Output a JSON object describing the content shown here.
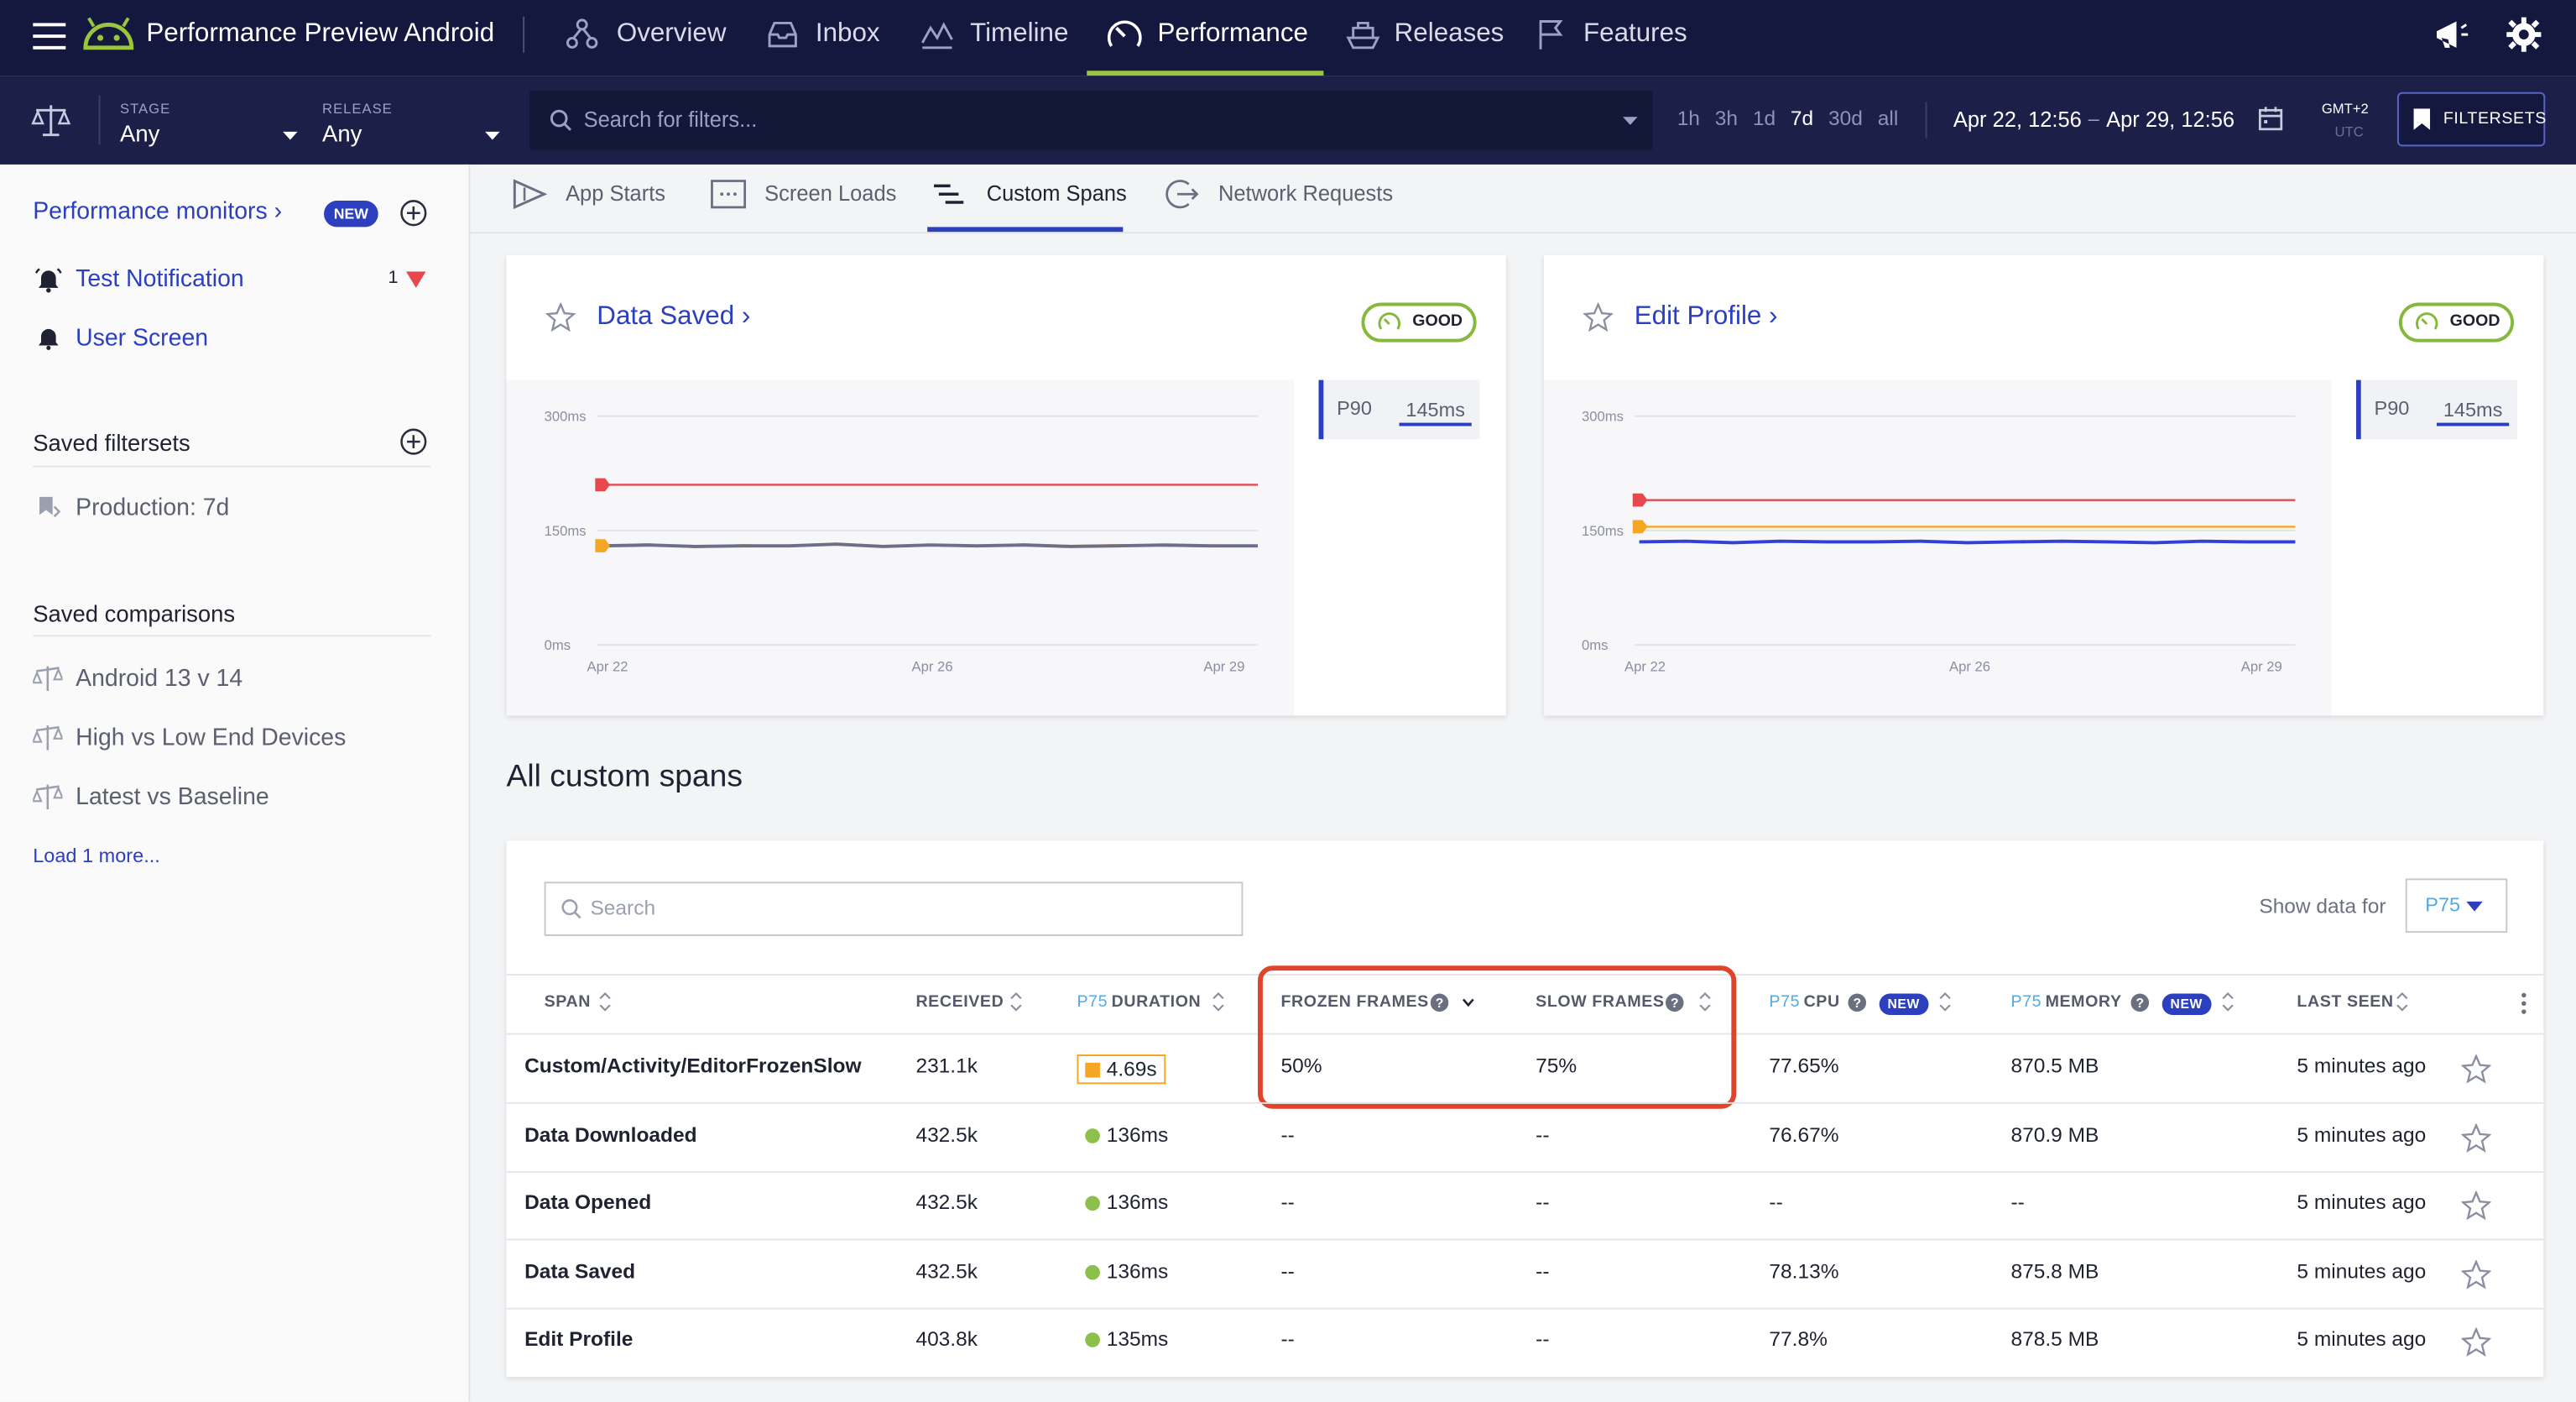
{
  "nav": {
    "app_title": "Performance Preview Android",
    "items": [
      {
        "label": "Overview"
      },
      {
        "label": "Inbox"
      },
      {
        "label": "Timeline"
      },
      {
        "label": "Performance"
      },
      {
        "label": "Releases"
      },
      {
        "label": "Features"
      }
    ]
  },
  "filters": {
    "stage_label": "STAGE",
    "stage_value": "Any",
    "release_label": "RELEASE",
    "release_value": "Any",
    "search_placeholder": "Search for filters...",
    "ranges": [
      "1h",
      "3h",
      "1d",
      "7d",
      "30d",
      "all"
    ],
    "active_range": "7d",
    "date_from": "Apr 22, 12:56",
    "date_sep": "–",
    "date_to": "Apr 29, 12:56",
    "tz_top": "GMT+2",
    "tz_bottom": "UTC",
    "filtersets_button": "FILTERSETS"
  },
  "sidebar": {
    "monitors_link": "Performance monitors ›",
    "new_badge": "NEW",
    "monitors": [
      {
        "label": "Test Notification",
        "count": "1"
      },
      {
        "label": "User Screen"
      }
    ],
    "saved_filtersets_heading": "Saved filtersets",
    "filtersets": [
      {
        "label": "Production: 7d"
      }
    ],
    "saved_comparisons_heading": "Saved comparisons",
    "comparisons": [
      {
        "label": "Android 13 v 14"
      },
      {
        "label": "High vs Low End Devices"
      },
      {
        "label": "Latest vs Baseline"
      }
    ],
    "load_more": "Load 1 more..."
  },
  "tabs": [
    {
      "label": "App Starts"
    },
    {
      "label": "Screen Loads"
    },
    {
      "label": "Custom Spans",
      "active": true
    },
    {
      "label": "Network Requests"
    }
  ],
  "cards": [
    {
      "title": "Data Saved ›",
      "status": "GOOD",
      "percentile": "P90",
      "value": "145ms",
      "y_ticks": [
        "300ms",
        "150ms",
        "0ms"
      ],
      "x_ticks": [
        "Apr 22",
        "Apr 26",
        "Apr 29"
      ]
    },
    {
      "title": "Edit Profile ›",
      "status": "GOOD",
      "percentile": "P90",
      "value": "145ms",
      "y_ticks": [
        "300ms",
        "150ms",
        "0ms"
      ],
      "x_ticks": [
        "Apr 22",
        "Apr 26",
        "Apr 29"
      ]
    }
  ],
  "chart_data": [
    {
      "type": "line",
      "title": "Data Saved",
      "ylim": [
        0,
        300
      ],
      "series": [
        {
          "color": "#e5484d",
          "values": [
            210,
            210,
            210,
            210,
            210,
            210,
            210,
            210,
            210,
            210,
            210,
            210,
            210,
            210,
            210
          ]
        },
        {
          "color": "#f5a623",
          "values": [
            130,
            132,
            128,
            131,
            129,
            133,
            130,
            131,
            129,
            132,
            130,
            131,
            130,
            129,
            130
          ]
        },
        {
          "color": "#6b6f8a",
          "values": [
            130,
            131,
            129,
            130,
            130,
            132,
            129,
            131,
            130,
            131,
            129,
            130,
            131,
            130,
            130
          ]
        }
      ]
    },
    {
      "type": "line",
      "title": "Edit Profile",
      "ylim": [
        0,
        300
      ],
      "series": [
        {
          "color": "#e5484d",
          "values": [
            190,
            190,
            190,
            190,
            190,
            190,
            190,
            190,
            190,
            190,
            190,
            190,
            190,
            190,
            190
          ]
        },
        {
          "color": "#f5a623",
          "values": [
            155,
            155,
            155,
            155,
            155,
            155,
            155,
            155,
            155,
            155,
            155,
            155,
            155,
            155,
            155
          ]
        },
        {
          "color": "#3340d6",
          "values": [
            135,
            136,
            134,
            136,
            135,
            135,
            136,
            134,
            135,
            136,
            135,
            134,
            136,
            135,
            135
          ]
        }
      ]
    }
  ],
  "section_title": "All custom spans",
  "table": {
    "search_placeholder": "Search",
    "show_data_for": "Show data for",
    "percentile_select": "P75",
    "headers": {
      "span": "SPAN",
      "received": "RECEIVED",
      "duration_p": "P75",
      "duration": "DURATION",
      "frozen": "FROZEN FRAMES",
      "slow": "SLOW FRAMES",
      "cpu_p": "P75",
      "cpu": "CPU",
      "mem_p": "P75",
      "mem": "MEMORY",
      "new": "NEW",
      "last_seen": "LAST SEEN"
    },
    "rows": [
      {
        "span": "Custom/Activity/EditorFrozenSlow",
        "received": "231.1k",
        "duration": "4.69s",
        "status": "warn",
        "frozen": "50%",
        "slow": "75%",
        "cpu": "77.65%",
        "memory": "870.5 MB",
        "last_seen": "5 minutes ago"
      },
      {
        "span": "Data Downloaded",
        "received": "432.5k",
        "duration": "136ms",
        "status": "good",
        "frozen": "--",
        "slow": "--",
        "cpu": "76.67%",
        "memory": "870.9 MB",
        "last_seen": "5 minutes ago"
      },
      {
        "span": "Data Opened",
        "received": "432.5k",
        "duration": "136ms",
        "status": "good",
        "frozen": "--",
        "slow": "--",
        "cpu": "--",
        "memory": "--",
        "last_seen": "5 minutes ago"
      },
      {
        "span": "Data Saved",
        "received": "432.5k",
        "duration": "136ms",
        "status": "good",
        "frozen": "--",
        "slow": "--",
        "cpu": "78.13%",
        "memory": "875.8 MB",
        "last_seen": "5 minutes ago"
      },
      {
        "span": "Edit Profile",
        "received": "403.8k",
        "duration": "135ms",
        "status": "good",
        "frozen": "--",
        "slow": "--",
        "cpu": "77.8%",
        "memory": "878.5 MB",
        "last_seen": "5 minutes ago"
      }
    ]
  },
  "colors": {
    "nav_bg": "#14183f",
    "accent": "#2b3fbf",
    "good": "#86b83d",
    "highlight": "#e0442b"
  }
}
